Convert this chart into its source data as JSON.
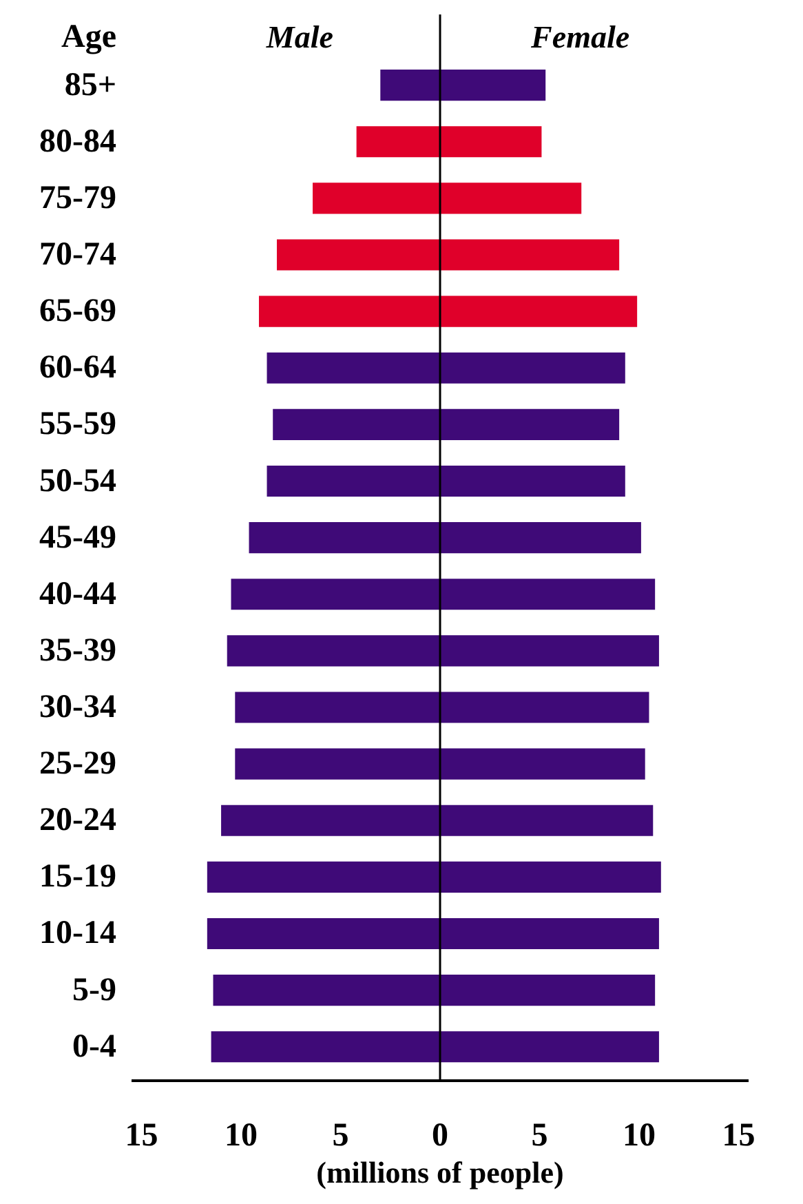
{
  "chart_data": {
    "type": "bar",
    "orientation": "horizontal",
    "stacked": true,
    "ylabel": "Age",
    "xlabel": "(millions of people)",
    "categories": [
      "85+",
      "80-84",
      "75-79",
      "70-74",
      "65-69",
      "60-64",
      "55-59",
      "50-54",
      "45-49",
      "40-44",
      "35-39",
      "30-34",
      "25-29",
      "20-24",
      "15-19",
      "10-14",
      "5-9",
      "0-4"
    ],
    "series": [
      {
        "name": "Male",
        "colors": [
          "#3f0a78",
          "#e0002a",
          "#e0002a",
          "#e0002a",
          "#e0002a",
          "#3f0a78",
          "#3f0a78",
          "#3f0a78",
          "#3f0a78",
          "#3f0a78",
          "#3f0a78",
          "#3f0a78",
          "#3f0a78",
          "#3f0a78",
          "#3f0a78",
          "#3f0a78",
          "#3f0a78",
          "#3f0a78"
        ],
        "values": [
          -3.0,
          -4.2,
          -6.4,
          -8.2,
          -9.1,
          -8.7,
          -8.4,
          -8.7,
          -9.6,
          -10.5,
          -10.7,
          -10.3,
          -10.3,
          -11.0,
          -11.7,
          -11.7,
          -11.4,
          -11.5
        ]
      },
      {
        "name": "Female",
        "colors": [
          "#3f0a78",
          "#e0002a",
          "#e0002a",
          "#e0002a",
          "#e0002a",
          "#3f0a78",
          "#3f0a78",
          "#3f0a78",
          "#3f0a78",
          "#3f0a78",
          "#3f0a78",
          "#3f0a78",
          "#3f0a78",
          "#3f0a78",
          "#3f0a78",
          "#3f0a78",
          "#3f0a78",
          "#3f0a78"
        ],
        "values": [
          5.3,
          5.1,
          7.1,
          9.0,
          9.9,
          9.3,
          9.0,
          9.3,
          10.1,
          10.8,
          11.0,
          10.5,
          10.3,
          10.7,
          11.1,
          11.0,
          10.8,
          11.0
        ]
      }
    ],
    "xlim": [
      -15.5,
      15.5
    ],
    "xticks": [
      {
        "value": -15,
        "label": "15"
      },
      {
        "value": -10,
        "label": "10"
      },
      {
        "value": -5,
        "label": "5"
      },
      0,
      5,
      10,
      15
    ],
    "ref_lines": [
      {
        "axis": "x",
        "value": 0,
        "color": "#000000"
      }
    ],
    "grid": false
  }
}
